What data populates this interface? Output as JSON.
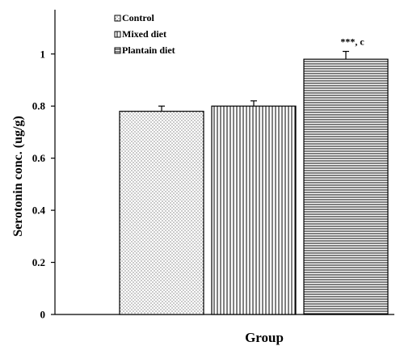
{
  "chart_data": {
    "type": "bar",
    "categories": [
      "Control",
      "Mixed diet",
      "Plantain diet"
    ],
    "values": [
      0.78,
      0.8,
      0.98
    ],
    "errors": [
      0.02,
      0.02,
      0.03
    ],
    "patterns": [
      "dots",
      "vertical-lines",
      "horizontal-lines"
    ],
    "title": "",
    "xlabel": "Group",
    "ylabel": "Serotonin conc. (ug/g)",
    "ylim": [
      0,
      1.17
    ],
    "yticks": [
      0,
      0.2,
      0.4,
      0.6,
      0.8,
      1
    ],
    "ytick_labels": [
      "0",
      "0.2",
      "0.4",
      "0.6",
      "0.8",
      "1"
    ],
    "legend": {
      "placement": "top-left",
      "entries": [
        "Control",
        "Mixed diet",
        "Plantain diet"
      ]
    },
    "annotations": [
      {
        "category": "Plantain diet",
        "text": "***, c"
      }
    ],
    "grid": false,
    "colors": {
      "bar_fill": "#ffffff",
      "bar_stroke": "#000000",
      "pattern": "#000000"
    }
  }
}
